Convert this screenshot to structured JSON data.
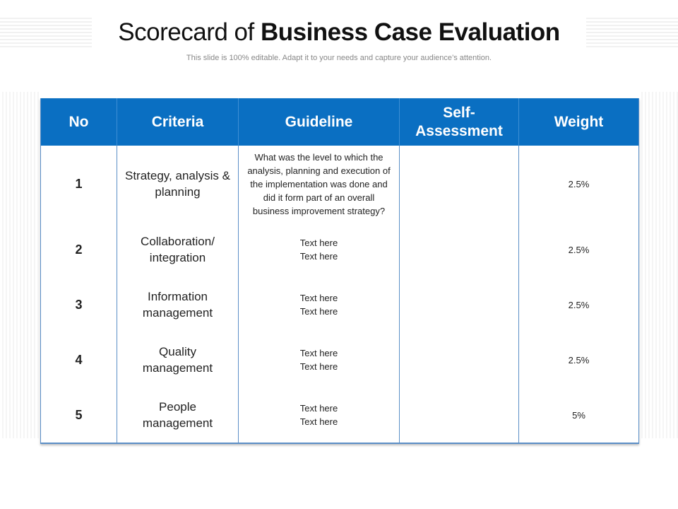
{
  "title": {
    "regular": "Scorecard of ",
    "bold": "Business Case Evaluation"
  },
  "subtitle": "This slide is 100% editable. Adapt it to your needs and capture your audience’s attention.",
  "table": {
    "headers": [
      "No",
      "Criteria",
      "Guideline",
      "Self-\nAssessment",
      "Weight"
    ],
    "rows": [
      {
        "no": "1",
        "criteria": "Strategy, analysis & planning",
        "guideline": "What was the level to which the analysis, planning and execution of the implementation was done and did it form part of an overall business improvement strategy?",
        "self": "",
        "weight": "2.5%"
      },
      {
        "no": "2",
        "criteria": "Collaboration/ integration",
        "guideline1": "Text here",
        "guideline2": "Text here",
        "self": "",
        "weight": "2.5%"
      },
      {
        "no": "3",
        "criteria": "Information management",
        "guideline1": "Text here",
        "guideline2": "Text here",
        "self": "",
        "weight": "2.5%"
      },
      {
        "no": "4",
        "criteria": "Quality management",
        "guideline1": "Text here",
        "guideline2": "Text here",
        "self": "",
        "weight": "2.5%"
      },
      {
        "no": "5",
        "criteria": "People management",
        "guideline1": "Text here",
        "guideline2": "Text here",
        "self": "",
        "weight": "5%"
      }
    ]
  }
}
